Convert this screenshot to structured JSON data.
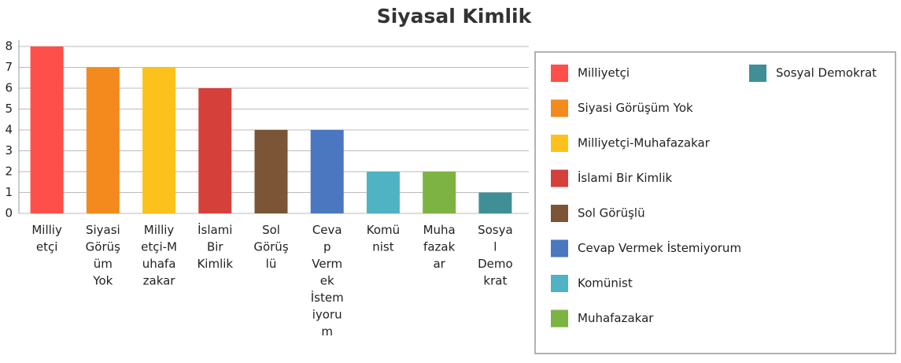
{
  "chart_data": {
    "type": "bar",
    "title": "Siyasal Kimlik",
    "categories": [
      "Milliyetçi",
      "Siyasi Görüşüm Yok",
      "Milliyetçi-Muhafazakar",
      "İslami Bir Kimlik",
      "Sol Görüşlü",
      "Cevap Vermek İstemiyorum",
      "Komünist",
      "Muhafazakar",
      "Sosyal Demokrat"
    ],
    "values": [
      8,
      7,
      7,
      6,
      4,
      4,
      2,
      2,
      1
    ],
    "colors": [
      "#ff4f4b",
      "#f28a1e",
      "#fcc21b",
      "#d6403a",
      "#7b5535",
      "#4a77c0",
      "#4fb3c3",
      "#7cb342",
      "#3f8f97"
    ],
    "ylim": [
      0,
      8
    ],
    "yticks": [
      0,
      1,
      2,
      3,
      4,
      5,
      6,
      7,
      8
    ],
    "grid": true,
    "legend": "right"
  }
}
